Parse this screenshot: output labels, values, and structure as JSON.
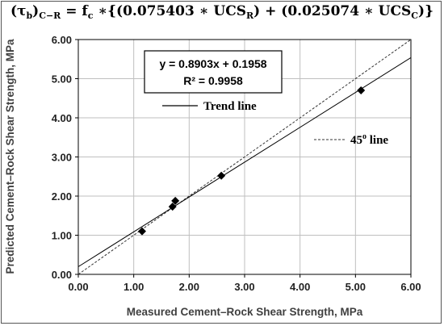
{
  "equation": {
    "lhs": "τ",
    "lhs_sub": "b",
    "lhs_group_sub": "C−R",
    "rhs_prefix": " = f",
    "rhs_fc_sub": "c",
    "rhs_middle": " ∗{(0.075403 ∗ UCS",
    "ucs_r_sub": "R",
    "rhs_plus": ") + (0.025074 ∗ UCS",
    "ucs_c_sub": "C",
    "rhs_end": ")}"
  },
  "regression_box": {
    "equation": "y = 0.8903x + 0.1958",
    "r2": "R² = 0.9958"
  },
  "legend": {
    "trend_label": "Trend line",
    "ref_label": "45",
    "ref_label_sup": "o",
    "ref_label_suffix": " line"
  },
  "chart_data": {
    "type": "scatter",
    "xlabel": "Measured Cement–Rock Shear Strength, MPa",
    "ylabel": "Predicted Cement–Rock Shear Strength, MPa",
    "xlim": [
      0,
      6
    ],
    "ylim": [
      0,
      6
    ],
    "x_ticks": [
      "0.00",
      "1.00",
      "2.00",
      "3.00",
      "4.00",
      "5.00",
      "6.00"
    ],
    "y_ticks": [
      "0.00",
      "1.00",
      "2.00",
      "3.00",
      "4.00",
      "5.00",
      "6.00"
    ],
    "grid": true,
    "points": [
      {
        "x": 1.15,
        "y": 1.1
      },
      {
        "x": 1.7,
        "y": 1.73
      },
      {
        "x": 1.75,
        "y": 1.88
      },
      {
        "x": 2.58,
        "y": 2.52
      },
      {
        "x": 5.1,
        "y": 4.7
      }
    ],
    "trend_line": {
      "slope": 0.8903,
      "intercept": 0.1958,
      "style": "solid",
      "color": "#000000"
    },
    "reference_line": {
      "slope": 1,
      "intercept": 0,
      "style": "dashed",
      "color": "#333333"
    },
    "marker": {
      "shape": "diamond",
      "color": "#000000"
    },
    "grid_color": "#bfbfbf"
  }
}
